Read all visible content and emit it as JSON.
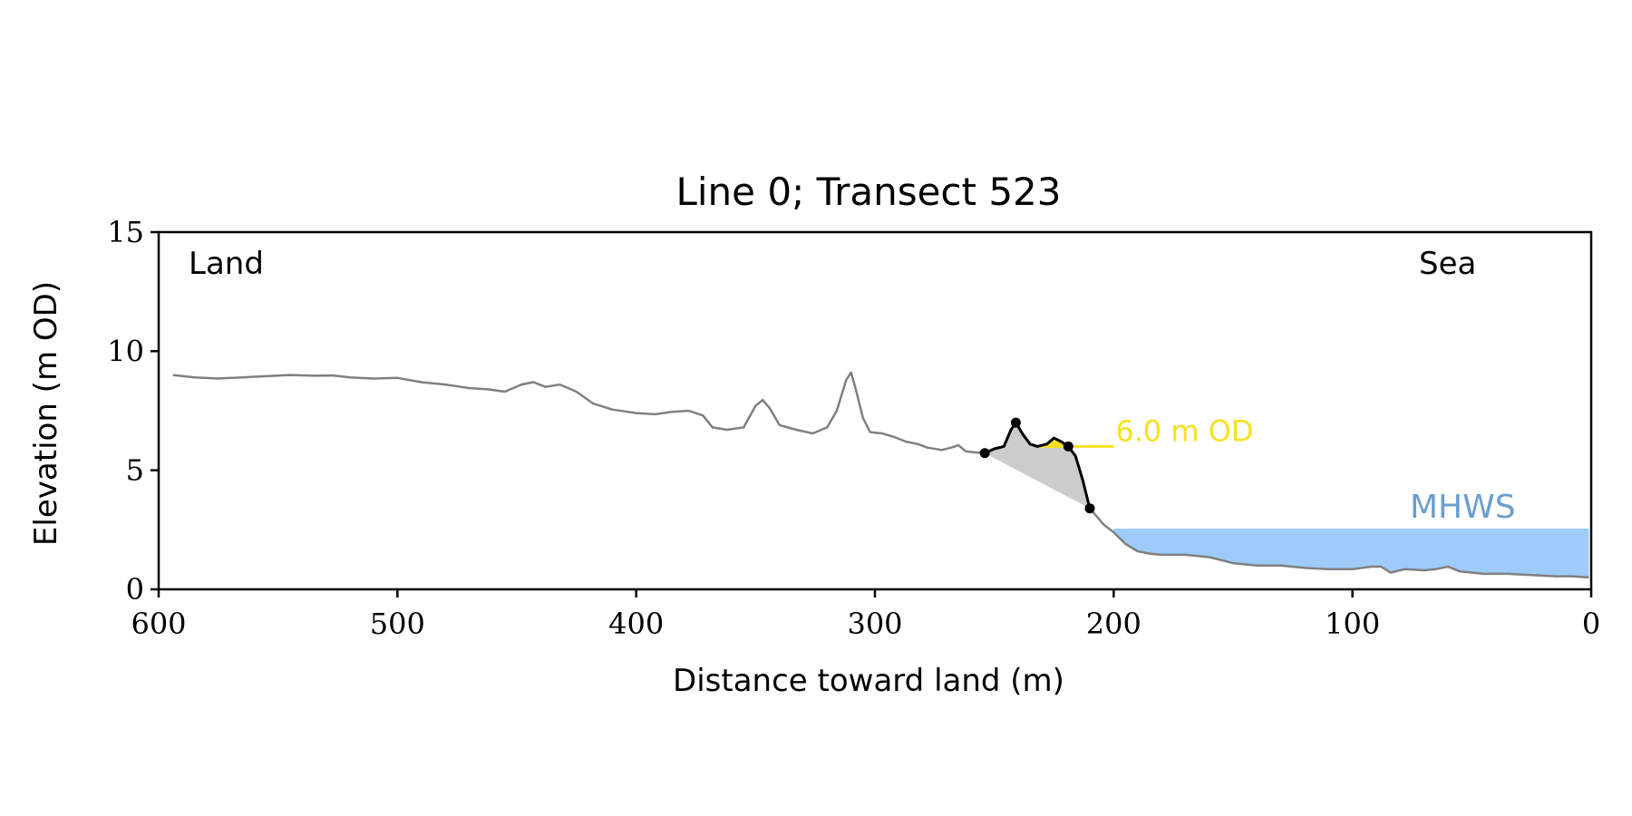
{
  "chart_data": {
    "type": "line",
    "title": "Line 0; Transect 523",
    "xlabel": "Distance toward land (m)",
    "ylabel": "Elevation (m OD)",
    "xlim": [
      600,
      0
    ],
    "ylim": [
      0,
      15
    ],
    "x_ticks": [
      600,
      500,
      400,
      300,
      200,
      100,
      0
    ],
    "y_ticks": [
      0,
      5,
      10,
      15
    ],
    "grid": false,
    "annotations": {
      "land_label": "Land",
      "sea_label": "Sea",
      "contour_label": "6.0 m OD",
      "mhws_label": "MHWS"
    },
    "mhws": {
      "elevation": 2.55,
      "x_from": 200,
      "x_to": 1
    },
    "contour": {
      "elevation": 6.0,
      "x_from": 232,
      "x_to": 200
    },
    "series": [
      {
        "role": "full-profile",
        "color": "#808080",
        "points": [
          [
            594,
            9.0
          ],
          [
            585,
            8.9
          ],
          [
            575,
            8.85
          ],
          [
            565,
            8.9
          ],
          [
            555,
            8.95
          ],
          [
            545,
            9.0
          ],
          [
            535,
            8.97
          ],
          [
            527,
            8.98
          ],
          [
            520,
            8.9
          ],
          [
            510,
            8.85
          ],
          [
            500,
            8.88
          ],
          [
            490,
            8.7
          ],
          [
            480,
            8.6
          ],
          [
            470,
            8.45
          ],
          [
            462,
            8.4
          ],
          [
            455,
            8.3
          ],
          [
            448,
            8.6
          ],
          [
            443,
            8.7
          ],
          [
            438,
            8.5
          ],
          [
            432,
            8.6
          ],
          [
            425,
            8.3
          ],
          [
            418,
            7.8
          ],
          [
            410,
            7.55
          ],
          [
            400,
            7.4
          ],
          [
            392,
            7.35
          ],
          [
            385,
            7.45
          ],
          [
            378,
            7.5
          ],
          [
            372,
            7.3
          ],
          [
            368,
            6.8
          ],
          [
            362,
            6.7
          ],
          [
            355,
            6.8
          ],
          [
            350,
            7.7
          ],
          [
            347,
            7.95
          ],
          [
            344,
            7.6
          ],
          [
            340,
            6.9
          ],
          [
            333,
            6.7
          ],
          [
            326,
            6.55
          ],
          [
            320,
            6.8
          ],
          [
            316,
            7.5
          ],
          [
            312,
            8.8
          ],
          [
            310,
            9.1
          ],
          [
            308,
            8.4
          ],
          [
            305,
            7.2
          ],
          [
            302,
            6.6
          ],
          [
            297,
            6.55
          ],
          [
            292,
            6.4
          ],
          [
            287,
            6.2
          ],
          [
            282,
            6.1
          ],
          [
            278,
            5.95
          ],
          [
            272,
            5.85
          ],
          [
            268,
            5.95
          ],
          [
            265,
            6.05
          ],
          [
            262,
            5.8
          ],
          [
            258,
            5.75
          ],
          [
            254,
            5.72
          ],
          [
            250,
            5.9
          ],
          [
            246,
            6.0
          ],
          [
            243,
            6.7
          ],
          [
            241,
            7.0
          ],
          [
            238,
            6.5
          ],
          [
            235,
            6.1
          ],
          [
            232,
            6.0
          ],
          [
            228,
            6.1
          ],
          [
            225,
            6.35
          ],
          [
            222,
            6.2
          ],
          [
            219,
            6.0
          ],
          [
            216,
            5.6
          ],
          [
            213,
            4.6
          ],
          [
            210,
            3.4
          ],
          [
            207,
            3.05
          ],
          [
            204,
            2.7
          ],
          [
            200,
            2.4
          ],
          [
            195,
            1.9
          ],
          [
            190,
            1.6
          ],
          [
            185,
            1.5
          ],
          [
            180,
            1.45
          ],
          [
            170,
            1.45
          ],
          [
            160,
            1.35
          ],
          [
            150,
            1.1
          ],
          [
            140,
            1.0
          ],
          [
            130,
            1.0
          ],
          [
            120,
            0.9
          ],
          [
            110,
            0.85
          ],
          [
            100,
            0.85
          ],
          [
            92,
            0.95
          ],
          [
            88,
            0.95
          ],
          [
            84,
            0.7
          ],
          [
            78,
            0.85
          ],
          [
            70,
            0.8
          ],
          [
            65,
            0.85
          ],
          [
            60,
            0.95
          ],
          [
            55,
            0.75
          ],
          [
            45,
            0.65
          ],
          [
            35,
            0.65
          ],
          [
            25,
            0.6
          ],
          [
            15,
            0.55
          ],
          [
            8,
            0.55
          ],
          [
            1,
            0.5
          ]
        ]
      },
      {
        "role": "cliff-profile",
        "color": "#000000",
        "points": [
          [
            254,
            5.72
          ],
          [
            250,
            5.9
          ],
          [
            246,
            6.0
          ],
          [
            243,
            6.7
          ],
          [
            241,
            7.0
          ],
          [
            238,
            6.5
          ],
          [
            235,
            6.1
          ],
          [
            232,
            6.0
          ],
          [
            228,
            6.1
          ],
          [
            225,
            6.35
          ],
          [
            222,
            6.2
          ],
          [
            219,
            6.0
          ],
          [
            216,
            5.6
          ],
          [
            213,
            4.6
          ],
          [
            210,
            3.4
          ]
        ]
      }
    ],
    "markers": [
      {
        "x": 254,
        "y": 5.72
      },
      {
        "x": 241,
        "y": 7.0
      },
      {
        "x": 219,
        "y": 6.0
      },
      {
        "x": 210,
        "y": 3.4
      }
    ],
    "colors": {
      "profile": "#808080",
      "cliff": "#000000",
      "cliff_fill": "#cccccc",
      "contour": "#f7e11e",
      "mhws_fill": "#9ecbfa",
      "mhws_text": "#6a9fd0",
      "axis": "#000000"
    }
  }
}
